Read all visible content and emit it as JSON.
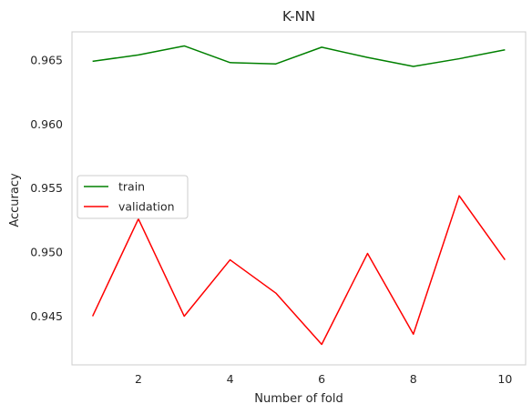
{
  "chart_data": {
    "type": "line",
    "title": "K-NN",
    "xlabel": "Number of fold",
    "ylabel": "Accuracy",
    "x": [
      1,
      2,
      3,
      4,
      5,
      6,
      7,
      8,
      9,
      10
    ],
    "xlim": [
      0.55,
      10.45
    ],
    "ylim": [
      0.9412,
      0.9672
    ],
    "xticks": [
      2,
      4,
      6,
      8,
      10
    ],
    "yticks": [
      0.945,
      0.95,
      0.955,
      0.96,
      0.965
    ],
    "xtick_labels": [
      "2",
      "4",
      "6",
      "8",
      "10"
    ],
    "ytick_labels": [
      "0.945",
      "0.950",
      "0.955",
      "0.960",
      "0.965"
    ],
    "grid": false,
    "legend_position": "center-left",
    "series": [
      {
        "name": "train",
        "color": "#008000",
        "values": [
          0.9649,
          0.9654,
          0.9661,
          0.9648,
          0.9647,
          0.966,
          0.9652,
          0.9645,
          0.9651,
          0.9658
        ]
      },
      {
        "name": "validation",
        "color": "#ff0000",
        "values": [
          0.945,
          0.9526,
          0.945,
          0.9494,
          0.9468,
          0.9428,
          0.9499,
          0.9436,
          0.9544,
          0.9494
        ]
      }
    ]
  }
}
